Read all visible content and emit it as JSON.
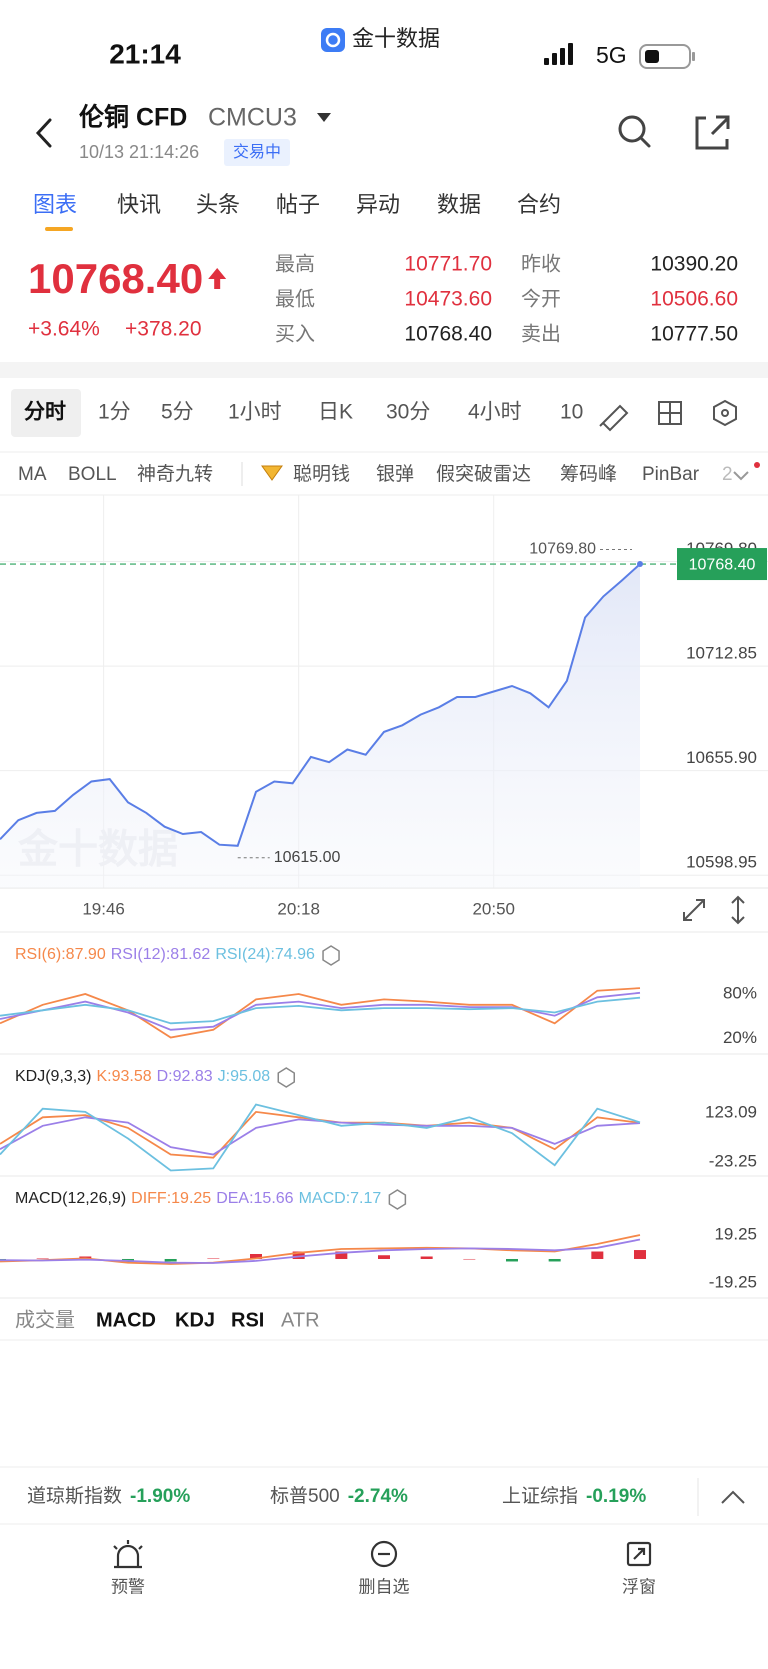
{
  "status_bar": {
    "time": "21:14",
    "app": "金十数据",
    "network": "5G"
  },
  "header": {
    "name": "伦铜 CFD",
    "code": "CMCU3",
    "datetime": "10/13 21:14:26",
    "status": "交易中"
  },
  "tabs": {
    "items": [
      "图表",
      "快讯",
      "头条",
      "帖子",
      "异动",
      "数据",
      "合约"
    ],
    "active": 0
  },
  "quote": {
    "price": "10768.40",
    "change_pct": "+3.64%",
    "change": "+378.20",
    "color": "#e0303e",
    "stats": [
      {
        "label": "最高",
        "value": "10771.70",
        "color": "#e0303e"
      },
      {
        "label": "最低",
        "value": "10473.60",
        "color": "#e0303e"
      },
      {
        "label": "买入",
        "value": "10768.40",
        "color": "#222222"
      },
      {
        "label": "昨收",
        "value": "10390.20",
        "color": "#222222"
      },
      {
        "label": "今开",
        "value": "10506.60",
        "color": "#e0303e"
      },
      {
        "label": "卖出",
        "value": "10777.50",
        "color": "#222222"
      }
    ]
  },
  "intervals": {
    "items": [
      "分时",
      "1分",
      "5分",
      "1小时",
      "日K",
      "30分",
      "4小时",
      "10"
    ],
    "active": 0
  },
  "indicators": [
    "MA",
    "BOLL",
    "神奇九转",
    "聪明钱",
    "银弹",
    "假突破雷达",
    "筹码峰",
    "PinBar",
    "2"
  ],
  "chart_data": [
    {
      "type": "line",
      "watermark": "金十数据",
      "color": "#5a7ee6",
      "x": [
        "19:29",
        "19:32",
        "19:35",
        "19:38",
        "19:41",
        "19:44",
        "19:47",
        "19:50",
        "19:53",
        "19:56",
        "19:59",
        "20:02",
        "20:05",
        "20:08",
        "20:11",
        "20:14",
        "20:17",
        "20:20",
        "20:23",
        "20:26",
        "20:29",
        "20:32",
        "20:35",
        "20:38",
        "20:41",
        "20:44",
        "20:47",
        "20:50",
        "20:53",
        "20:56",
        "20:59",
        "21:02",
        "21:05",
        "21:08",
        "21:11",
        "21:14"
      ],
      "values": [
        10618.5,
        10628.9,
        10632.9,
        10634,
        10642.7,
        10650,
        10651.3,
        10638.6,
        10632.9,
        10625.4,
        10621.4,
        10622.5,
        10615.6,
        10615,
        10644.4,
        10650,
        10649,
        10663.4,
        10660.5,
        10667.4,
        10664.6,
        10677,
        10680.6,
        10686.4,
        10690.4,
        10696,
        10696,
        10699,
        10702,
        10698,
        10690.4,
        10704.8,
        10739.3,
        10750.8,
        10759.4,
        10768.4
      ],
      "xlim": [
        "19:29",
        "21:35"
      ],
      "xticks": [
        "19:46",
        "20:18",
        "20:50"
      ],
      "ylim": [
        10592,
        10806
      ],
      "yticks": [
        10598.95,
        {
          "value": 10655.9,
          "label": "10655.90"
        },
        10712.85,
        {
          "value": 10769.8,
          "label": "10769.80"
        }
      ],
      "high": {
        "value": 10769.8,
        "label": "10769.80"
      },
      "low": {
        "value": 10615,
        "label": "10615.00"
      },
      "last": {
        "value": 10768.4,
        "label": "10768.40",
        "color": "#26a05a"
      },
      "grid": true
    },
    {
      "type": "line",
      "x": [
        "19:29",
        "19:36",
        "19:43",
        "19:50",
        "19:57",
        "20:04",
        "20:11",
        "20:18",
        "20:25",
        "20:32",
        "20:39",
        "20:46",
        "20:53",
        "21:00",
        "21:07",
        "21:14"
      ],
      "xlim": [
        "19:29",
        "21:35"
      ],
      "ylim": [
        7.2,
        108.3
      ],
      "yticks": [
        {
          "value": 80,
          "label": "80%"
        },
        {
          "value": 20,
          "label": "20%"
        }
      ],
      "series": [
        {
          "name": "RSI(6):87.90",
          "color": "#f5884a",
          "values": [
            40.5,
            65.4,
            80,
            58,
            21.4,
            31.7,
            72.7,
            80,
            65.4,
            72.7,
            69.8,
            65.4,
            65.4,
            40.5,
            84.4,
            87.9
          ]
        },
        {
          "name": "RSI(12):81.62",
          "color": "#9b7fe8",
          "values": [
            46.3,
            58,
            69.8,
            55.1,
            31.7,
            35.9,
            65.4,
            69.8,
            61,
            65.4,
            65.4,
            62.4,
            62.4,
            50.7,
            75.6,
            81.62
          ]
        },
        {
          "name": "RSI(24):74.96",
          "color": "#6cc0e0",
          "values": [
            50.7,
            58,
            65.4,
            58,
            40.5,
            43.4,
            61,
            63.9,
            58,
            61,
            61,
            59.5,
            61,
            55.1,
            69.8,
            74.96
          ]
        }
      ]
    },
    {
      "type": "line",
      "title": "KDJ(9,3,3)",
      "x": [
        "19:29",
        "19:36",
        "19:43",
        "19:50",
        "19:57",
        "20:04",
        "20:11",
        "20:18",
        "20:25",
        "20:32",
        "20:39",
        "20:46",
        "20:53",
        "21:00",
        "21:07",
        "21:14"
      ],
      "xlim": [
        "19:29",
        "21:35"
      ],
      "ylim": [
        -65.1,
        170.9
      ],
      "yticks": [
        123.09,
        -23.25
      ],
      "series": [
        {
          "name": "K:93.58",
          "color": "#f5884a",
          "values": [
            30.9,
            110.4,
            116.7,
            78.6,
            -0.9,
            -10.5,
            126.3,
            110.4,
            94.5,
            94.5,
            84.9,
            94.5,
            78.6,
            15,
            110.4,
            93.58
          ]
        },
        {
          "name": "D:92.83",
          "color": "#9b7fe8",
          "values": [
            15,
            84.9,
            110.4,
            94.5,
            21.3,
            -1,
            78.6,
            104,
            94.5,
            88.1,
            84.9,
            84.9,
            78.6,
            30.9,
            84.9,
            92.83
          ]
        },
        {
          "name": "J:95.08",
          "color": "#6cc0e0",
          "values": [
            -1,
            135.8,
            126.3,
            46.8,
            -48.6,
            -42.3,
            148.5,
            116.7,
            84.9,
            94.5,
            78.6,
            110.4,
            62.7,
            -32.7,
            135.8,
            95.08
          ]
        }
      ]
    },
    {
      "type": "line",
      "title": "MACD(12,26,9)",
      "x": [
        "19:29",
        "19:36",
        "19:43",
        "19:50",
        "19:57",
        "20:04",
        "20:11",
        "20:18",
        "20:25",
        "20:32",
        "20:39",
        "20:46",
        "20:53",
        "21:00",
        "21:07",
        "21:14"
      ],
      "xlim": [
        "19:29",
        "21:35"
      ],
      "ylim": [
        -26.5,
        33.7
      ],
      "yticks": [
        19.25,
        -19.25
      ],
      "series": [
        {
          "name": "DIFF:19.25",
          "color": "#f5884a",
          "values": [
            -2,
            -1,
            0.5,
            -3,
            -4,
            -3,
            0.5,
            5,
            8,
            8.5,
            9,
            8.5,
            7,
            6,
            12,
            19.25
          ]
        },
        {
          "name": "DEA:15.66",
          "color": "#9b7fe8",
          "values": [
            -1,
            -1.2,
            -0.5,
            -1.5,
            -3,
            -3.2,
            -1.5,
            2,
            5,
            7,
            8,
            8.5,
            8,
            7,
            9,
            15.66
          ]
        }
      ],
      "bars": {
        "name": "MACD:7.17",
        "color": "#6cc0e0",
        "up_color": "#e0303e",
        "down_color": "#26a05a",
        "values": [
          -2,
          0.4,
          2,
          -3,
          -2,
          0.4,
          4,
          6,
          6,
          3,
          2,
          0,
          -2,
          -2,
          6,
          7.17
        ]
      }
    }
  ],
  "indicator_tabs": {
    "items": [
      "成交量",
      "MACD",
      "KDJ",
      "RSI",
      "ATR"
    ],
    "active": [
      1,
      2,
      3
    ]
  },
  "tickers": [
    {
      "name": "道琼斯指数",
      "change": "-1.90%",
      "color": "#26a05a"
    },
    {
      "name": "标普500",
      "change": "-2.74%",
      "color": "#26a05a"
    },
    {
      "name": "上证综指",
      "change": "-0.19%",
      "color": "#26a05a"
    }
  ],
  "nav": [
    "预警",
    "删自选",
    "浮窗"
  ]
}
